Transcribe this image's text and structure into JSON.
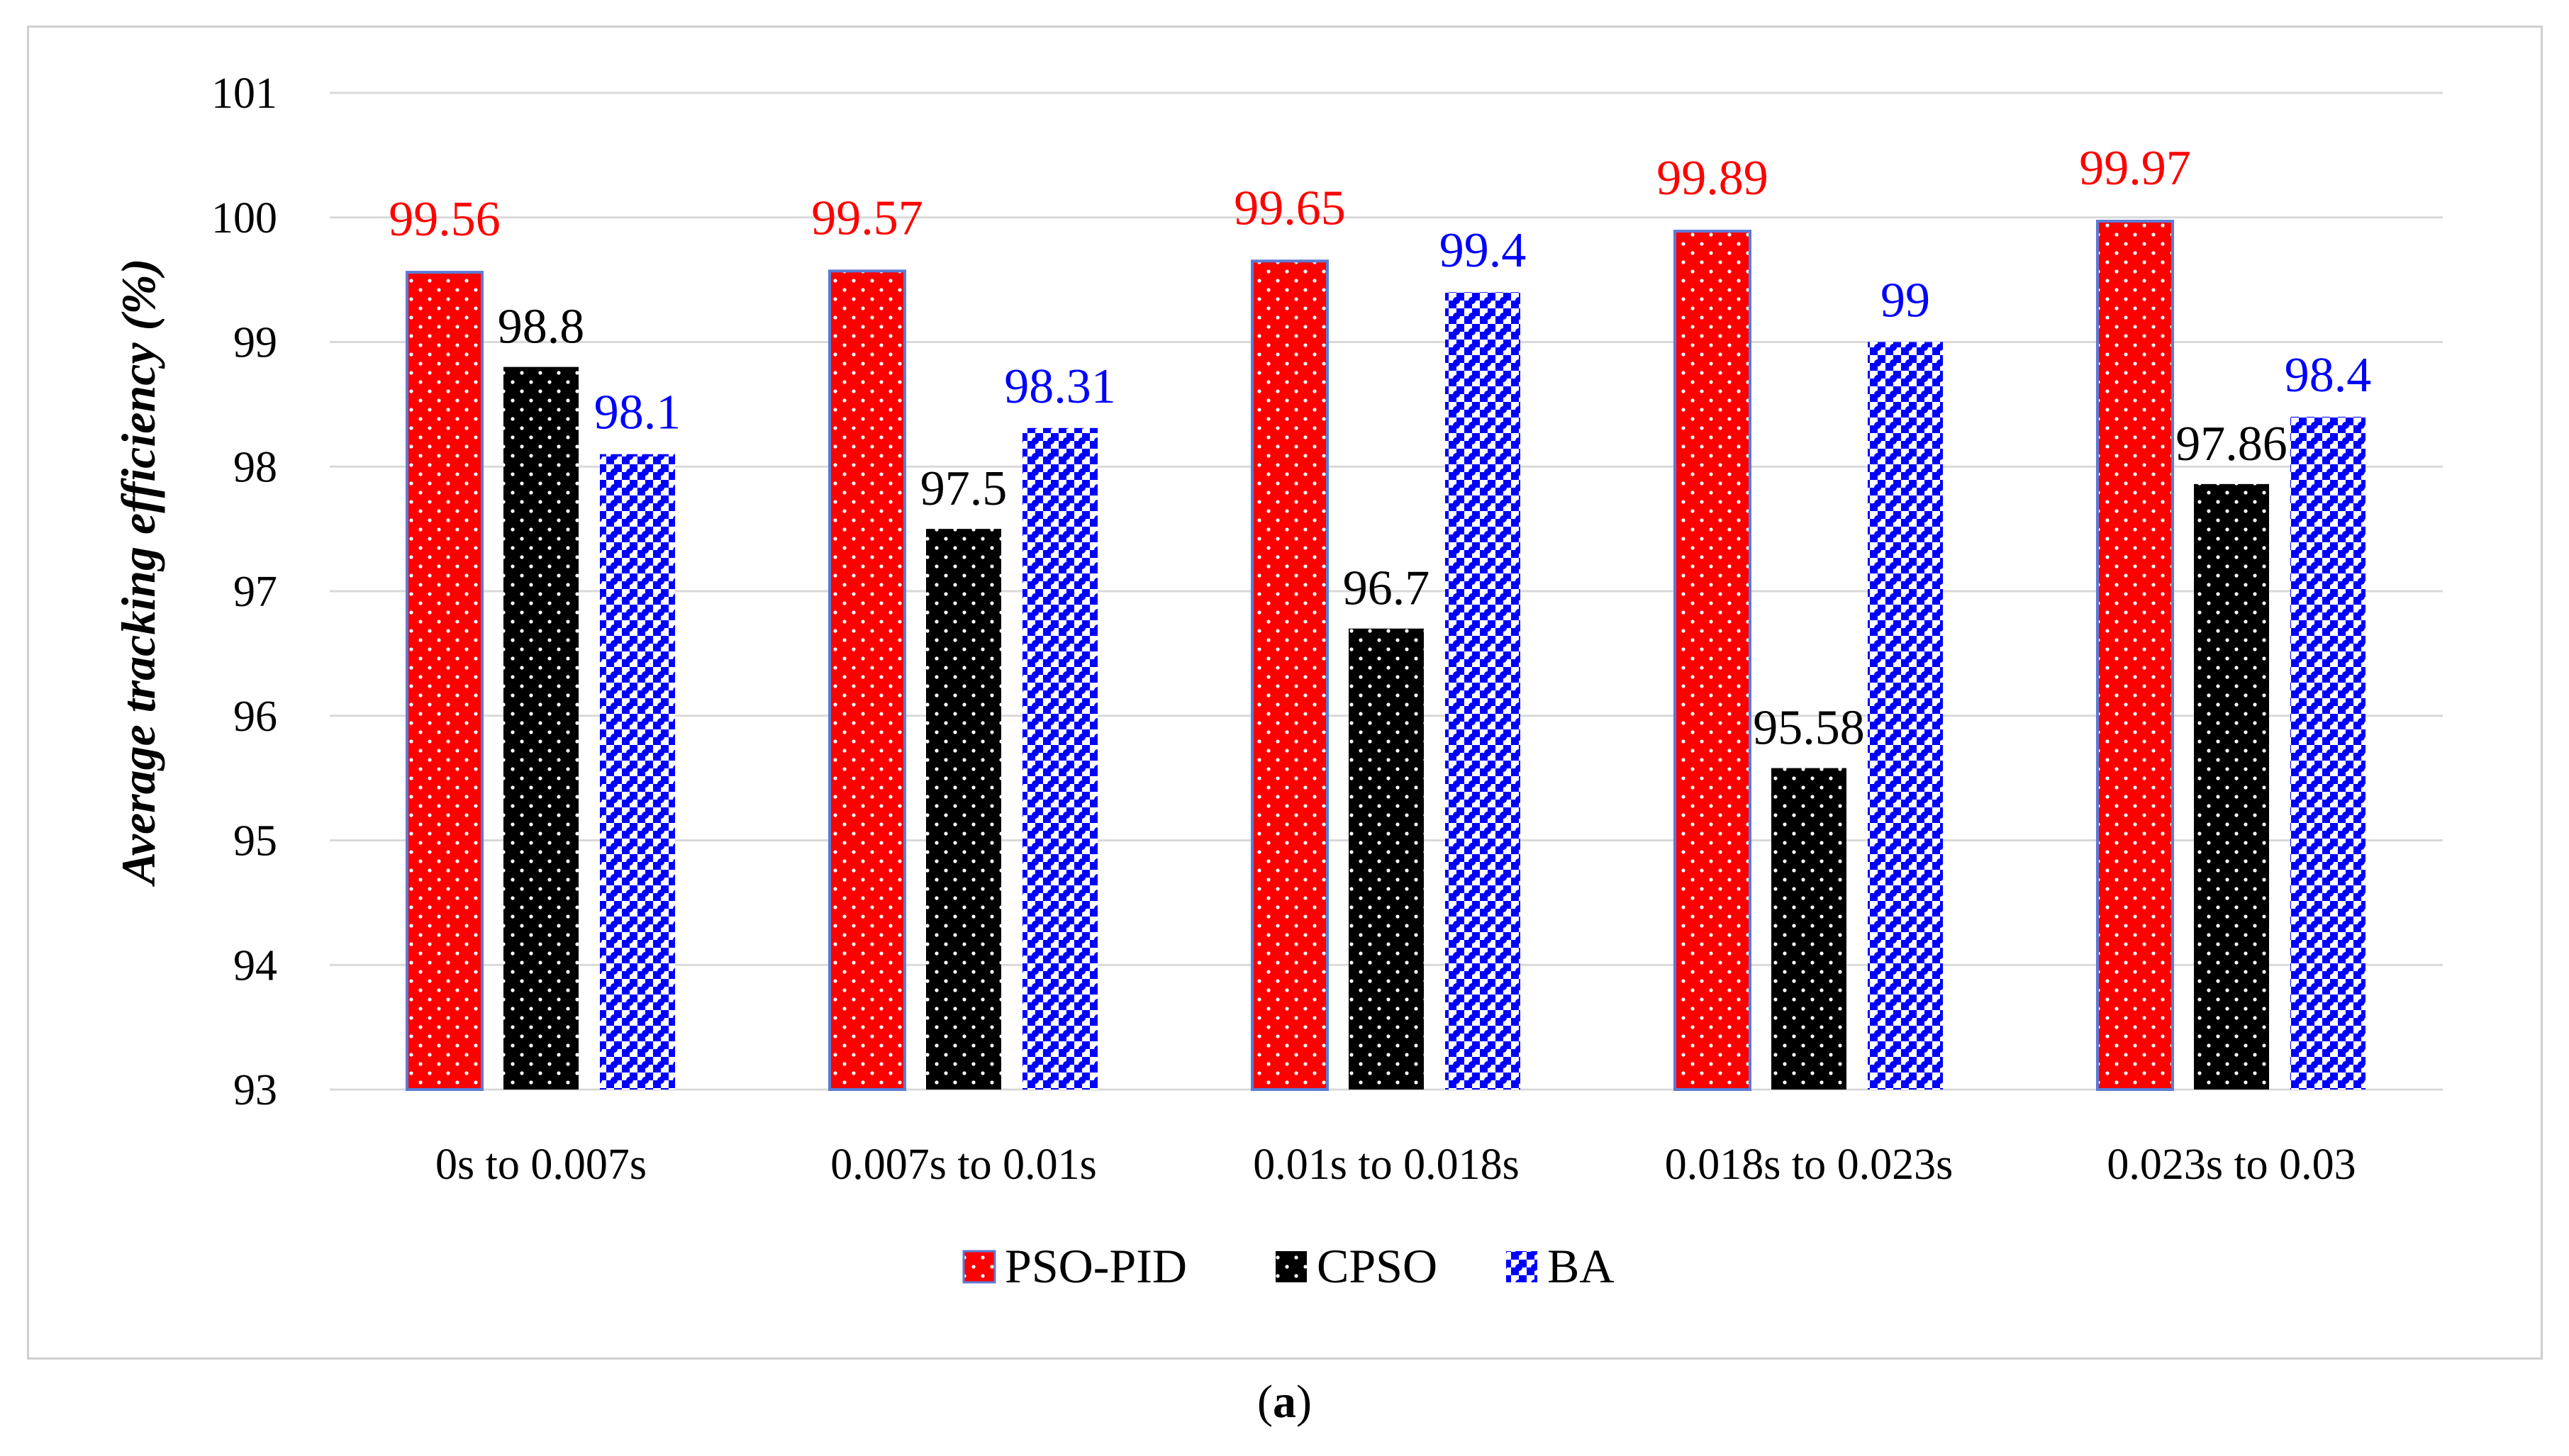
{
  "caption": {
    "open": "(",
    "letter": "a",
    "close": ")"
  },
  "chart_data": {
    "type": "bar",
    "title": "",
    "xlabel": "",
    "ylabel": "Average tracking efficiency (%)",
    "ylim": [
      93,
      101
    ],
    "yticks": [
      93,
      94,
      95,
      96,
      97,
      98,
      99,
      100,
      101
    ],
    "grid": true,
    "legend_position": "bottom",
    "categories": [
      "0s to 0.007s",
      "0.007s to 0.01s",
      "0.01s to 0.018s",
      "0.018s to 0.023s",
      "0.023s to 0.03"
    ],
    "series": [
      {
        "name": "PSO-PID",
        "values": [
          99.56,
          99.57,
          99.65,
          99.89,
          99.97
        ],
        "labels": [
          "99.56",
          "99.57",
          "99.65",
          "99.89",
          "99.97"
        ],
        "color": "#ff0000",
        "label_color": "#ff0000",
        "pattern": "dots-red"
      },
      {
        "name": "CPSO",
        "values": [
          98.8,
          97.5,
          96.7,
          95.58,
          97.86
        ],
        "labels": [
          "98.8",
          "97.5",
          "96.7",
          "95.58",
          "97.86"
        ],
        "color": "#000000",
        "label_color": "#000000",
        "pattern": "dots-black"
      },
      {
        "name": "BA",
        "values": [
          98.1,
          98.31,
          99.4,
          99,
          98.4
        ],
        "labels": [
          "98.1",
          "98.31",
          "99.4",
          "99",
          "98.4"
        ],
        "color": "#0000ff",
        "label_color": "#0000ff",
        "pattern": "checker-blue"
      }
    ]
  }
}
